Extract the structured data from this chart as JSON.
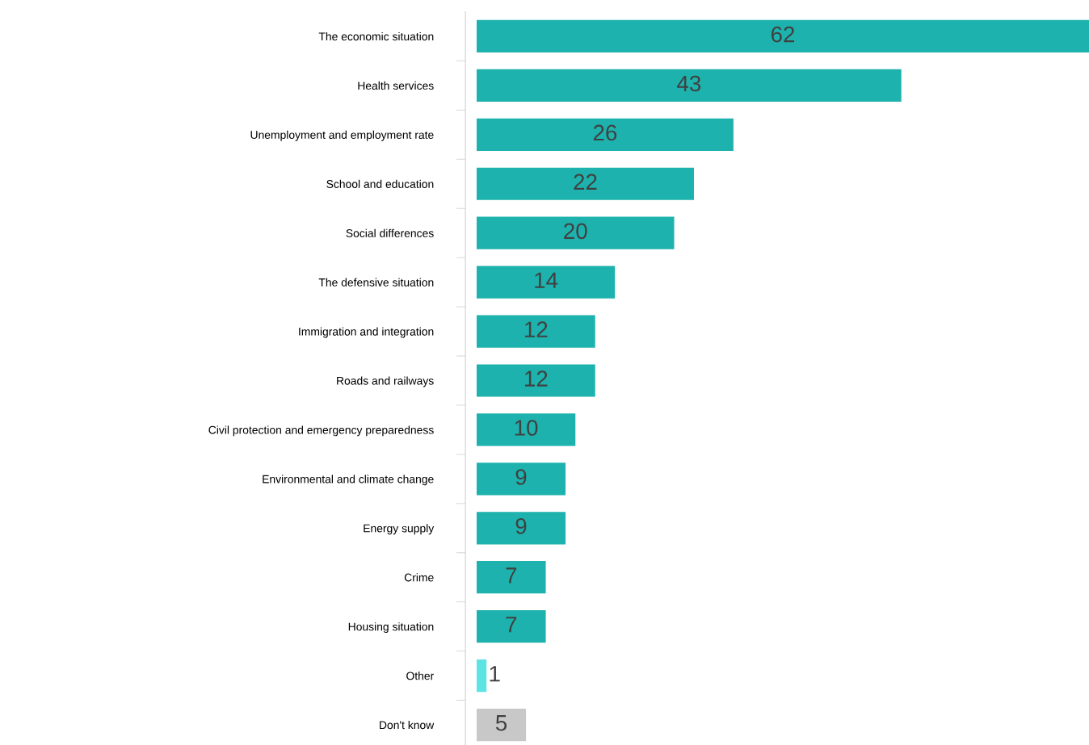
{
  "chart_data": {
    "type": "bar",
    "orientation": "horizontal",
    "data_labels": true,
    "categories": [
      "The economic situation",
      "Health services",
      "Unemployment and employment rate",
      "School and education",
      "Social differences",
      "The defensive situation",
      "Immigration and integration",
      "Roads and railways",
      "Civil protection and emergency preparedness",
      "Environmental and climate change",
      "Energy supply",
      "Crime",
      "Housing situation",
      "Other",
      "Don't know"
    ],
    "values": [
      62,
      43,
      26,
      22,
      20,
      14,
      12,
      12,
      10,
      9,
      9,
      7,
      7,
      1,
      5
    ],
    "colors": [
      "#1db2ad",
      "#1db2ad",
      "#1db2ad",
      "#1db2ad",
      "#1db2ad",
      "#1db2ad",
      "#1db2ad",
      "#1db2ad",
      "#1db2ad",
      "#1db2ad",
      "#1db2ad",
      "#1db2ad",
      "#1db2ad",
      "#5ce3e3",
      "#c8c8c8"
    ]
  }
}
